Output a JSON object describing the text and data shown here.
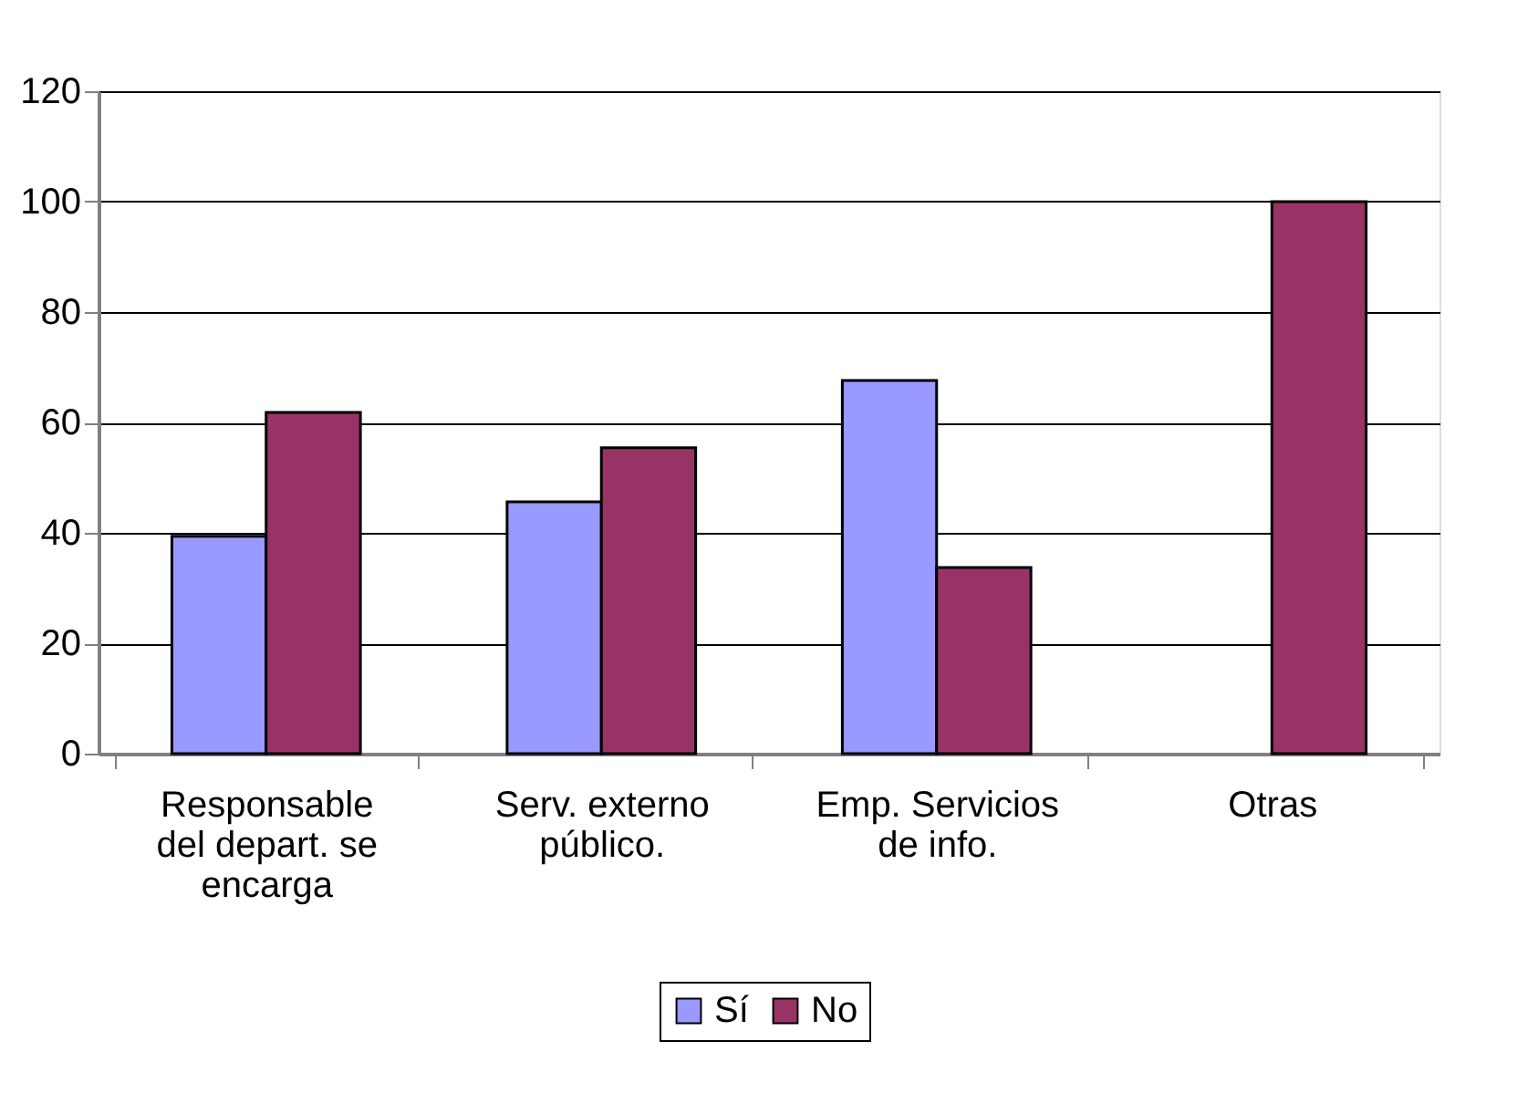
{
  "chart_data": {
    "type": "bar",
    "categories": [
      "Responsable del depart. se encarga",
      "Serv. externo público.",
      "Emp. Servicios de info.",
      "Otras"
    ],
    "series": [
      {
        "name": "Sí",
        "color": "#9999ff",
        "values": [
          39.4,
          45.6,
          67.6,
          null
        ]
      },
      {
        "name": "No",
        "color": "#993366",
        "values": [
          61.8,
          55.4,
          33.7,
          100
        ]
      }
    ],
    "ylim": [
      0,
      120
    ],
    "yticks": [
      0,
      20,
      40,
      60,
      80,
      100,
      120
    ],
    "grid": "y",
    "legend": "bottom"
  }
}
